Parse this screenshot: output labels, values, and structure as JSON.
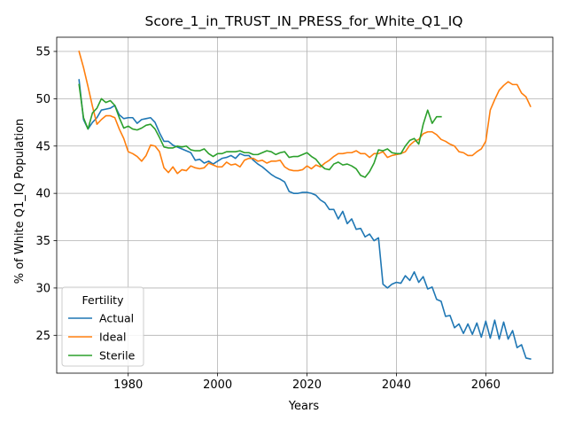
{
  "chart_data": {
    "type": "line",
    "title": "Score_1_in_TRUST_IN_PRESS_for_White_Q1_IQ",
    "xlabel": "Years",
    "ylabel": "% of White Q1_IQ Population",
    "xlim": [
      1964,
      2075
    ],
    "ylim": [
      21,
      56.5
    ],
    "xticks": [
      1980,
      2000,
      2020,
      2040,
      2060
    ],
    "yticks": [
      25,
      30,
      35,
      40,
      45,
      50,
      55
    ],
    "grid": true,
    "legend": {
      "title": "Fertility",
      "placement": "bottom-left"
    },
    "series": [
      {
        "name": "Actual",
        "color": "#1f77b4",
        "x": [
          1969,
          1970,
          1971,
          1972,
          1973,
          1974,
          1975,
          1976,
          1977,
          1978,
          1979,
          1980,
          1981,
          1982,
          1983,
          1984,
          1985,
          1986,
          1987,
          1988,
          1989,
          1990,
          1991,
          1992,
          1993,
          1994,
          1995,
          1996,
          1997,
          1998,
          1999,
          2000,
          2001,
          2002,
          2003,
          2004,
          2005,
          2006,
          2007,
          2008,
          2009,
          2010,
          2011,
          2012,
          2013,
          2014,
          2015,
          2016,
          2017,
          2018,
          2019,
          2020,
          2021,
          2022,
          2023,
          2024,
          2025,
          2026,
          2027,
          2028,
          2029,
          2030,
          2031,
          2032,
          2033,
          2034,
          2035,
          2036,
          2037,
          2038,
          2039,
          2040,
          2041,
          2042,
          2043,
          2044,
          2045,
          2046,
          2047,
          2048,
          2049,
          2050,
          2051,
          2052,
          2053,
          2054,
          2055,
          2056,
          2057,
          2058,
          2059,
          2060,
          2061,
          2062,
          2063,
          2064,
          2065,
          2066,
          2067,
          2068,
          2069,
          2070
        ],
        "values": [
          52.0,
          47.8,
          46.8,
          47.5,
          48.0,
          48.8,
          48.9,
          49.0,
          49.3,
          48.3,
          47.9,
          48.0,
          48.0,
          47.4,
          47.8,
          47.9,
          48.0,
          47.5,
          46.4,
          45.5,
          45.5,
          45.1,
          44.9,
          44.7,
          44.5,
          44.3,
          43.5,
          43.6,
          43.2,
          43.4,
          43.1,
          43.4,
          43.7,
          43.8,
          44.0,
          43.7,
          44.2,
          44.0,
          44.0,
          43.5,
          43.1,
          42.8,
          42.4,
          42.0,
          41.7,
          41.5,
          41.2,
          40.2,
          40.0,
          40.0,
          40.1,
          40.1,
          40.0,
          39.8,
          39.3,
          39.0,
          38.3,
          38.3,
          37.3,
          38.1,
          36.8,
          37.3,
          36.2,
          36.3,
          35.4,
          35.7,
          35.0,
          35.3,
          30.4,
          30.0,
          30.4,
          30.6,
          30.5,
          31.3,
          30.8,
          31.7,
          30.6,
          31.2,
          29.9,
          30.1,
          28.8,
          28.6,
          27.0,
          27.1,
          25.8,
          26.2,
          25.2,
          26.2,
          25.1,
          26.3,
          24.8,
          26.5,
          24.7,
          26.6,
          24.6,
          26.4,
          24.6,
          25.5,
          23.7,
          24.0,
          22.6,
          22.5
        ]
      },
      {
        "name": "Ideal",
        "color": "#ff7f0e",
        "x": [
          1969,
          1970,
          1971,
          1972,
          1973,
          1974,
          1975,
          1976,
          1977,
          1978,
          1979,
          1980,
          1981,
          1982,
          1983,
          1984,
          1985,
          1986,
          1987,
          1988,
          1989,
          1990,
          1991,
          1992,
          1993,
          1994,
          1995,
          1996,
          1997,
          1998,
          1999,
          2000,
          2001,
          2002,
          2003,
          2004,
          2005,
          2006,
          2007,
          2008,
          2009,
          2010,
          2011,
          2012,
          2013,
          2014,
          2015,
          2016,
          2017,
          2018,
          2019,
          2020,
          2021,
          2022,
          2023,
          2024,
          2025,
          2026,
          2027,
          2028,
          2029,
          2030,
          2031,
          2032,
          2033,
          2034,
          2035,
          2036,
          2037,
          2038,
          2039,
          2040,
          2041,
          2042,
          2043,
          2044,
          2045,
          2046,
          2047,
          2048,
          2049,
          2050,
          2051,
          2052,
          2053,
          2054,
          2055,
          2056,
          2057,
          2058,
          2059,
          2060,
          2061,
          2062,
          2063,
          2064,
          2065,
          2066,
          2067,
          2068,
          2069,
          2070
        ],
        "values": [
          55.0,
          53.3,
          51.3,
          49.2,
          47.3,
          47.8,
          48.2,
          48.2,
          48.0,
          46.8,
          45.8,
          44.4,
          44.2,
          43.9,
          43.4,
          44.0,
          45.1,
          45.0,
          44.4,
          42.7,
          42.2,
          42.8,
          42.1,
          42.5,
          42.4,
          42.9,
          42.7,
          42.6,
          42.7,
          43.2,
          43.0,
          42.8,
          42.8,
          43.3,
          43.0,
          43.1,
          42.8,
          43.5,
          43.7,
          43.7,
          43.4,
          43.5,
          43.2,
          43.4,
          43.4,
          43.5,
          42.8,
          42.5,
          42.4,
          42.4,
          42.5,
          42.9,
          42.6,
          43.0,
          42.8,
          43.2,
          43.5,
          43.9,
          44.2,
          44.2,
          44.3,
          44.3,
          44.5,
          44.2,
          44.2,
          43.8,
          44.2,
          44.2,
          44.4,
          43.8,
          44.0,
          44.1,
          44.2,
          44.4,
          45.1,
          45.5,
          45.7,
          46.3,
          46.5,
          46.5,
          46.2,
          45.7,
          45.5,
          45.2,
          45.0,
          44.4,
          44.3,
          44.0,
          44.0,
          44.4,
          44.7,
          45.5,
          48.8,
          49.9,
          50.9,
          51.4,
          51.8,
          51.5,
          51.5,
          50.6,
          50.2,
          49.2
        ]
      },
      {
        "name": "Sterile",
        "color": "#2ca02c",
        "x": [
          1969,
          1970,
          1971,
          1972,
          1973,
          1974,
          1975,
          1976,
          1977,
          1978,
          1979,
          1980,
          1981,
          1982,
          1983,
          1984,
          1985,
          1986,
          1987,
          1988,
          1989,
          1990,
          1991,
          1992,
          1993,
          1994,
          1995,
          1996,
          1997,
          1998,
          1999,
          2000,
          2001,
          2002,
          2003,
          2004,
          2005,
          2006,
          2007,
          2008,
          2009,
          2010,
          2011,
          2012,
          2013,
          2014,
          2015,
          2016,
          2017,
          2018,
          2019,
          2020,
          2021,
          2022,
          2023,
          2024,
          2025,
          2026,
          2027,
          2028,
          2029,
          2030,
          2031,
          2032,
          2033,
          2034,
          2035,
          2036,
          2037,
          2038,
          2039,
          2040,
          2041,
          2042,
          2043,
          2044,
          2045,
          2046,
          2047,
          2048,
          2049,
          2050
        ],
        "values": [
          51.5,
          48.0,
          46.8,
          48.5,
          49.0,
          50.0,
          49.6,
          49.8,
          49.3,
          48.0,
          46.9,
          47.1,
          46.8,
          46.7,
          46.9,
          47.2,
          47.3,
          46.8,
          45.9,
          44.9,
          44.8,
          44.8,
          45.0,
          44.9,
          45.0,
          44.6,
          44.5,
          44.5,
          44.7,
          44.2,
          43.9,
          44.2,
          44.2,
          44.4,
          44.4,
          44.4,
          44.5,
          44.3,
          44.3,
          44.1,
          44.1,
          44.3,
          44.5,
          44.4,
          44.1,
          44.3,
          44.4,
          43.8,
          43.9,
          43.9,
          44.1,
          44.3,
          43.9,
          43.6,
          43.0,
          42.6,
          42.5,
          43.1,
          43.3,
          43.0,
          43.1,
          42.9,
          42.6,
          41.9,
          41.7,
          42.3,
          43.2,
          44.6,
          44.5,
          44.7,
          44.3,
          44.2,
          44.2,
          45.0,
          45.6,
          45.8,
          45.2,
          47.3,
          48.8,
          47.4,
          48.1,
          48.1
        ]
      }
    ]
  }
}
